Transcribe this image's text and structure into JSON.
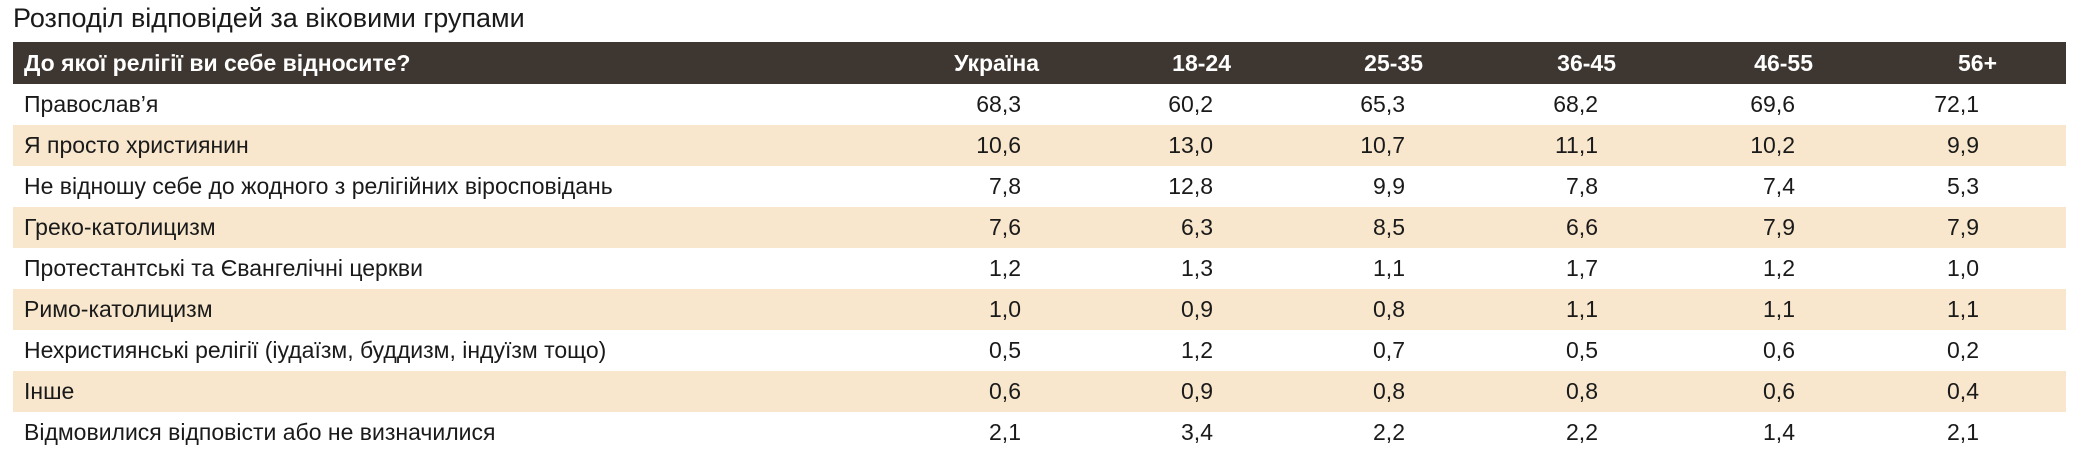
{
  "title": "Розподіл відповідей за віковими групами",
  "table": {
    "header": [
      "До якої релігії ви себе відносите?",
      "Україна",
      "18-24",
      "25-35",
      "36-45",
      "46-55",
      "56+"
    ],
    "rows": [
      [
        "Православ’я",
        "68,3",
        "60,2",
        "65,3",
        "68,2",
        "69,6",
        "72,1"
      ],
      [
        "Я просто християнин",
        "10,6",
        "13,0",
        "10,7",
        "11,1",
        "10,2",
        "9,9"
      ],
      [
        "Не відношу себе до жодного з релігійних віросповідань",
        "7,8",
        "12,8",
        "9,9",
        "7,8",
        "7,4",
        "5,3"
      ],
      [
        "Греко-католицизм",
        "7,6",
        "6,3",
        "8,5",
        "6,6",
        "7,9",
        "7,9"
      ],
      [
        "Протестантські та Євангелічні церкви",
        "1,2",
        "1,3",
        "1,1",
        "1,7",
        "1,2",
        "1,0"
      ],
      [
        "Римо-католицизм",
        "1,0",
        "0,9",
        "0,8",
        "1,1",
        "1,1",
        "1,1"
      ],
      [
        "Нехристиянські релігії (іудаїзм, буддизм, індуїзм тощо)",
        "0,5",
        "1,2",
        "0,7",
        "0,5",
        "0,6",
        "0,2"
      ],
      [
        "Інше",
        "0,6",
        "0,9",
        "0,8",
        "0,8",
        "0,6",
        "0,4"
      ],
      [
        "Відмовилися відповісти або не визначилися",
        "2,1",
        "3,4",
        "2,2",
        "2,2",
        "1,4",
        "2,1"
      ]
    ]
  }
}
